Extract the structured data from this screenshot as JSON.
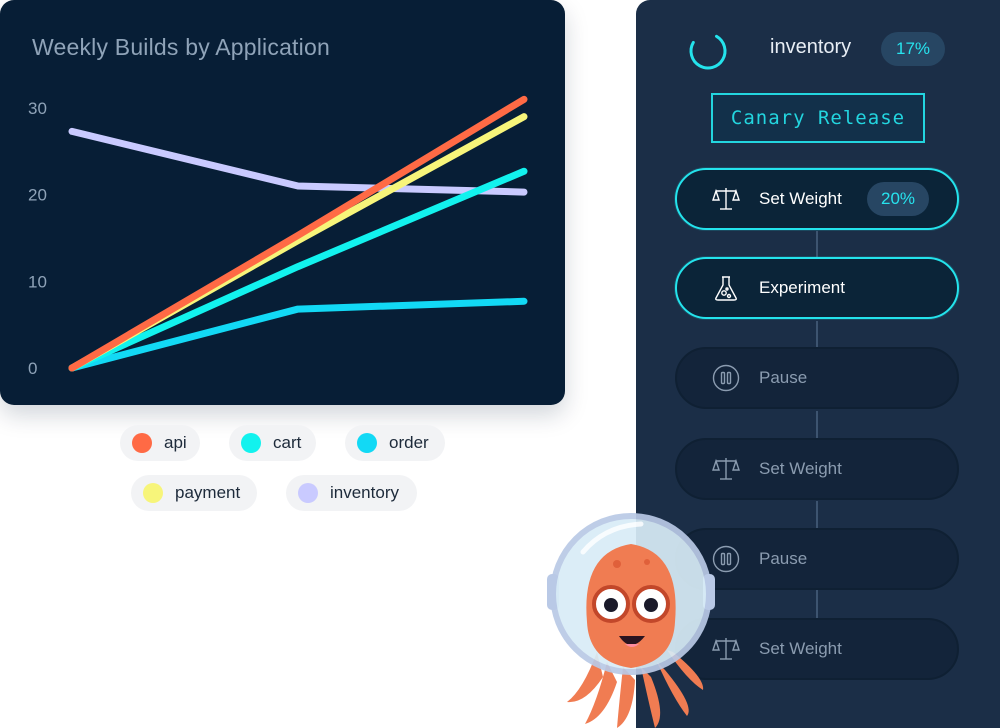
{
  "chart_data": {
    "type": "line",
    "title": "Weekly Builds by Application",
    "x": [
      0,
      1,
      2
    ],
    "xlabel": "",
    "ylabel": "",
    "ylim": [
      0,
      30
    ],
    "yticks": [
      "0",
      "10",
      "20",
      "30"
    ],
    "grid": false,
    "legend": "bottom",
    "series": [
      {
        "name": "api",
        "color": "#ff6a45",
        "values": [
          0,
          15.3,
          31
        ]
      },
      {
        "name": "cart",
        "color": "#12f2ee",
        "values": [
          0,
          11.7,
          22.7
        ]
      },
      {
        "name": "order",
        "color": "#12d9f5",
        "values": [
          0,
          6.8,
          7.7
        ]
      },
      {
        "name": "payment",
        "color": "#f7f57a",
        "values": [
          0,
          14.7,
          29
        ]
      },
      {
        "name": "inventory",
        "color": "#c9caff",
        "values": [
          27.3,
          21,
          20.3
        ]
      }
    ]
  },
  "panel": {
    "app_name": "inventory",
    "progress_label": "17%",
    "progress_fraction": 0.17,
    "strategy": "Canary Release",
    "accent_color": "#24e3ec",
    "steps": [
      {
        "label": "Set Weight",
        "icon": "scale-icon",
        "state": "active",
        "badge": "20%"
      },
      {
        "label": "Experiment",
        "icon": "flask-icon",
        "state": "active"
      },
      {
        "label": "Pause",
        "icon": "pause-icon",
        "state": "inactive"
      },
      {
        "label": "Set Weight",
        "icon": "scale-icon",
        "state": "inactive"
      },
      {
        "label": "Pause",
        "icon": "pause-icon",
        "state": "inactive"
      },
      {
        "label": "Set Weight",
        "icon": "scale-icon",
        "state": "inactive"
      }
    ]
  },
  "mascot": {
    "icon": "octopus-astronaut-icon"
  }
}
